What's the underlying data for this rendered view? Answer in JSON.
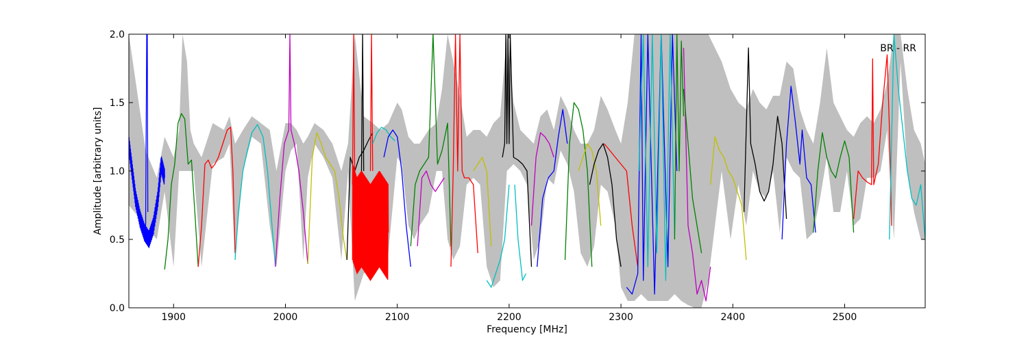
{
  "chart_data": {
    "type": "line",
    "title": "",
    "annotation": "BR - RR",
    "xlabel": "Frequency [MHz]",
    "ylabel": "Amplitude [arbitrary units]",
    "xlim": [
      1860,
      2572
    ],
    "ylim": [
      0.0,
      2.0
    ],
    "x_ticks": [
      1900,
      2000,
      2100,
      2200,
      2300,
      2400,
      2500
    ],
    "x_tick_labels": [
      "1900",
      "2000",
      "2100",
      "2200",
      "2300",
      "2400",
      "2500"
    ],
    "y_ticks": [
      0.0,
      0.5,
      1.0,
      1.5,
      2.0
    ],
    "y_tick_labels": [
      "0.0",
      "0.5",
      "1.0",
      "1.5",
      "2.0"
    ],
    "grid": false,
    "envelope": {
      "color": "#bfbfbf",
      "x": [
        1860,
        1875,
        1885,
        1892,
        1900,
        1905,
        1908,
        1912,
        1915,
        1918,
        1925,
        1935,
        1945,
        1950,
        1955,
        1962,
        1970,
        1978,
        1986,
        1992,
        2000,
        2005,
        2010,
        2016,
        2020,
        2026,
        2034,
        2042,
        2050,
        2056,
        2062,
        2070,
        2078,
        2085,
        2092,
        2100,
        2104,
        2110,
        2115,
        2120,
        2128,
        2135,
        2140,
        2145,
        2150,
        2156,
        2162,
        2168,
        2174,
        2180,
        2186,
        2192,
        2198,
        2204,
        2210,
        2216,
        2222,
        2228,
        2234,
        2240,
        2246,
        2252,
        2258,
        2264,
        2270,
        2276,
        2282,
        2288,
        2295,
        2300,
        2306,
        2312,
        2318,
        2324,
        2330,
        2336,
        2342,
        2348,
        2354,
        2360,
        2366,
        2372,
        2378,
        2384,
        2390,
        2398,
        2405,
        2412,
        2418,
        2424,
        2430,
        2436,
        2442,
        2448,
        2454,
        2460,
        2466,
        2472,
        2478,
        2484,
        2490,
        2496,
        2502,
        2508,
        2514,
        2520,
        2526,
        2532,
        2538,
        2544,
        2550,
        2556,
        2562,
        2568,
        2572
      ],
      "low": [
        0.75,
        0.6,
        0.5,
        0.85,
        0.3,
        1.0,
        1.0,
        1.0,
        1.0,
        1.0,
        0.3,
        1.05,
        1.1,
        1.2,
        0.35,
        1.0,
        1.25,
        1.2,
        0.6,
        0.3,
        1.0,
        1.15,
        1.2,
        0.35,
        0.95,
        1.2,
        1.1,
        0.95,
        0.35,
        1.0,
        0.05,
        0.25,
        0.3,
        0.3,
        0.4,
        1.1,
        1.05,
        0.6,
        0.5,
        0.6,
        0.7,
        1.0,
        1.0,
        0.5,
        0.35,
        0.45,
        0.9,
        0.95,
        0.9,
        0.3,
        0.15,
        0.2,
        1.0,
        1.05,
        1.0,
        0.9,
        0.35,
        0.5,
        0.95,
        0.9,
        1.15,
        1.05,
        0.85,
        0.4,
        0.3,
        0.45,
        0.9,
        0.85,
        0.6,
        0.15,
        0.05,
        0.05,
        0.1,
        0.05,
        0.05,
        0.05,
        0.05,
        0.1,
        0.05,
        0.02,
        0.0,
        0.0,
        0.2,
        0.6,
        1.0,
        0.5,
        0.9,
        0.6,
        1.0,
        0.85,
        0.8,
        1.0,
        0.55,
        1.1,
        1.0,
        0.95,
        0.5,
        0.55,
        0.8,
        1.1,
        0.7,
        0.7,
        1.0,
        0.6,
        0.65,
        0.95,
        0.95,
        1.0,
        1.3,
        0.5,
        1.8,
        1.0,
        0.7,
        0.5,
        0.5
      ],
      "high": [
        2.0,
        1.15,
        0.95,
        1.25,
        1.1,
        1.3,
        2.0,
        1.8,
        1.3,
        1.2,
        1.1,
        1.35,
        1.3,
        1.4,
        1.2,
        1.3,
        1.4,
        1.35,
        1.3,
        1.0,
        1.35,
        1.35,
        1.3,
        1.2,
        1.25,
        1.35,
        1.3,
        1.2,
        1.0,
        1.2,
        2.0,
        1.4,
        1.35,
        1.3,
        1.35,
        1.5,
        1.45,
        1.25,
        1.2,
        1.2,
        1.3,
        1.35,
        1.6,
        2.0,
        1.8,
        1.55,
        1.25,
        1.3,
        1.3,
        1.25,
        1.35,
        1.4,
        2.0,
        1.5,
        1.3,
        1.25,
        1.2,
        1.4,
        1.45,
        1.3,
        1.55,
        1.45,
        1.3,
        1.2,
        1.2,
        1.3,
        1.55,
        1.45,
        1.3,
        1.2,
        1.5,
        2.0,
        2.0,
        2.0,
        2.0,
        2.0,
        2.0,
        2.0,
        2.0,
        2.0,
        2.0,
        2.0,
        2.0,
        1.9,
        1.8,
        1.6,
        1.5,
        1.45,
        1.6,
        1.5,
        1.45,
        1.55,
        1.55,
        1.8,
        1.75,
        1.45,
        1.3,
        1.2,
        1.5,
        1.9,
        1.5,
        1.4,
        1.3,
        1.25,
        1.35,
        1.4,
        1.35,
        1.45,
        1.65,
        2.0,
        2.0,
        1.6,
        1.3,
        1.2,
        1.05
      ]
    },
    "series": [
      {
        "color": "#0000ff",
        "x": [
          1860,
          1863,
          1866,
          1870,
          1874,
          1878,
          1882,
          1886,
          1889,
          1892
        ],
        "y": [
          1.2,
          1.0,
          0.8,
          0.65,
          0.55,
          0.5,
          0.6,
          0.8,
          1.05,
          0.95
        ],
        "noise": 0.06
      },
      {
        "color": "#0000ff",
        "x": [
          1875,
          1876,
          1876.5,
          1877
        ],
        "y": [
          0.6,
          2.0,
          2.0,
          0.7
        ]
      },
      {
        "color": "#008000",
        "x": [
          1892,
          1895,
          1898,
          1901,
          1904,
          1907,
          1910,
          1913,
          1916,
          1919,
          1922
        ],
        "y": [
          0.28,
          0.5,
          0.9,
          1.05,
          1.35,
          1.42,
          1.38,
          1.05,
          1.08,
          0.7,
          0.3
        ]
      },
      {
        "color": "#ff0000",
        "x": [
          1922,
          1925,
          1928,
          1931,
          1934,
          1937,
          1940,
          1944,
          1948,
          1951,
          1953,
          1955
        ],
        "y": [
          0.3,
          0.6,
          1.05,
          1.08,
          1.02,
          1.05,
          1.1,
          1.2,
          1.3,
          1.32,
          1.0,
          0.4
        ]
      },
      {
        "color": "#00bfbf",
        "x": [
          1955,
          1958,
          1962,
          1966,
          1970,
          1975,
          1980,
          1984,
          1988,
          1991
        ],
        "y": [
          0.35,
          0.7,
          1.0,
          1.15,
          1.28,
          1.34,
          1.25,
          1.0,
          0.6,
          0.3
        ]
      },
      {
        "color": "#bf00bf",
        "x": [
          1991,
          1995,
          1999,
          2003,
          2004,
          2005,
          2008,
          2012,
          2016,
          2020
        ],
        "y": [
          0.3,
          0.8,
          1.2,
          1.3,
          2.0,
          1.3,
          1.2,
          1.0,
          0.7,
          0.32
        ]
      },
      {
        "color": "#bfbf00",
        "x": [
          2020,
          2024,
          2028,
          2032,
          2036,
          2040,
          2044,
          2048,
          2052,
          2055
        ],
        "y": [
          0.32,
          1.1,
          1.28,
          1.2,
          1.1,
          1.05,
          1.0,
          0.8,
          0.5,
          0.35
        ]
      },
      {
        "color": "#000000",
        "x": [
          2055,
          2058,
          2062,
          2066,
          2070,
          2074,
          2078
        ],
        "y": [
          0.35,
          1.1,
          1.0,
          1.1,
          1.15,
          1.22,
          1.28
        ]
      },
      {
        "color": "#ff0000",
        "x": [
          2060,
          2064,
          2068,
          2072,
          2076,
          2080,
          2084,
          2088,
          2092
        ],
        "y": [
          0.7,
          0.6,
          0.65,
          0.6,
          0.55,
          0.6,
          0.65,
          0.6,
          0.55
        ],
        "noise": 0.35
      },
      {
        "color": "#ff0000",
        "x": [
          2060,
          2061,
          2062
        ],
        "y": [
          0.9,
          2.0,
          0.9
        ]
      },
      {
        "color": "#000000",
        "x": [
          2068,
          2069,
          2070
        ],
        "y": [
          1.0,
          2.0,
          1.0
        ]
      },
      {
        "color": "#ff0000",
        "x": [
          2076,
          2077,
          2078
        ],
        "y": [
          1.0,
          2.0,
          1.0
        ]
      },
      {
        "color": "#00bfbf",
        "x": [
          2078,
          2082,
          2086,
          2090,
          2094,
          2098
        ],
        "y": [
          1.2,
          1.28,
          1.32,
          1.3,
          1.25,
          1.22
        ]
      },
      {
        "color": "#0000ff",
        "x": [
          2088,
          2092,
          2096,
          2100,
          2104,
          2108,
          2112
        ],
        "y": [
          1.1,
          1.25,
          1.3,
          1.25,
          1.0,
          0.6,
          0.3
        ]
      },
      {
        "color": "#008000",
        "x": [
          2112,
          2116,
          2120,
          2124,
          2128,
          2132,
          2136,
          2140,
          2145,
          2148
        ],
        "y": [
          0.45,
          0.9,
          1.0,
          1.05,
          1.1,
          2.0,
          1.05,
          1.15,
          1.35,
          0.45
        ]
      },
      {
        "color": "#bf00bf",
        "x": [
          2118,
          2122,
          2126,
          2130,
          2134,
          2138,
          2142
        ],
        "y": [
          0.45,
          0.95,
          1.0,
          0.9,
          0.85,
          0.9,
          0.95
        ]
      },
      {
        "color": "#ff0000",
        "x": [
          2148,
          2150,
          2152,
          2154,
          2156,
          2158,
          2160,
          2164,
          2168,
          2172
        ],
        "y": [
          0.3,
          1.0,
          2.0,
          1.0,
          2.0,
          1.0,
          0.95,
          0.95,
          0.9,
          0.4
        ]
      },
      {
        "color": "#bfbf00",
        "x": [
          2168,
          2172,
          2176,
          2180,
          2184
        ],
        "y": [
          1.0,
          1.05,
          1.1,
          1.0,
          0.45
        ]
      },
      {
        "color": "#00bfbf",
        "x": [
          2180,
          2184,
          2188,
          2192,
          2196,
          2200
        ],
        "y": [
          0.2,
          0.15,
          0.25,
          0.35,
          0.5,
          0.9
        ]
      },
      {
        "color": "#000000",
        "x": [
          2194,
          2196,
          2197,
          2198,
          2199,
          2200,
          2201,
          2204,
          2208,
          2212,
          2216,
          2220
        ],
        "y": [
          1.1,
          1.2,
          2.0,
          1.2,
          2.0,
          1.2,
          2.0,
          1.1,
          1.08,
          1.05,
          1.0,
          0.3
        ]
      },
      {
        "color": "#00bfbf",
        "x": [
          2205,
          2208,
          2212,
          2215
        ],
        "y": [
          0.9,
          0.5,
          0.2,
          0.25
        ]
      },
      {
        "color": "#bf00bf",
        "x": [
          2220,
          2224,
          2228,
          2232,
          2236,
          2240
        ],
        "y": [
          0.6,
          1.1,
          1.28,
          1.25,
          1.2,
          1.1
        ]
      },
      {
        "color": "#0000ff",
        "x": [
          2225,
          2230,
          2235,
          2240,
          2244,
          2248,
          2252
        ],
        "y": [
          0.3,
          0.8,
          0.95,
          1.0,
          1.25,
          1.45,
          1.2
        ]
      },
      {
        "color": "#008000",
        "x": [
          2250,
          2254,
          2258,
          2262,
          2266,
          2270,
          2274
        ],
        "y": [
          0.35,
          1.2,
          1.5,
          1.45,
          1.3,
          1.0,
          0.3
        ]
      },
      {
        "color": "#bfbf00",
        "x": [
          2262,
          2266,
          2270,
          2274,
          2278,
          2282
        ],
        "y": [
          1.0,
          1.1,
          1.2,
          1.15,
          1.0,
          0.6
        ]
      },
      {
        "color": "#000000",
        "x": [
          2272,
          2276,
          2280,
          2284,
          2288,
          2292,
          2296,
          2300
        ],
        "y": [
          0.9,
          1.05,
          1.15,
          1.2,
          1.1,
          0.9,
          0.5,
          0.3
        ]
      },
      {
        "color": "#ff0000",
        "x": [
          2285,
          2290,
          2295,
          2300,
          2305,
          2310,
          2315
        ],
        "y": [
          1.2,
          1.15,
          1.1,
          1.05,
          1.0,
          0.6,
          0.3
        ]
      },
      {
        "color": "#0000ff",
        "x": [
          2305,
          2310,
          2315,
          2318,
          2320,
          2324,
          2330,
          2336,
          2342,
          2346,
          2350
        ],
        "y": [
          0.15,
          0.1,
          0.25,
          2.0,
          0.2,
          2.0,
          0.1,
          2.0,
          0.3,
          2.0,
          1.0
        ]
      },
      {
        "color": "#00bfbf",
        "x": [
          2316,
          2320,
          2324,
          2328,
          2332,
          2336,
          2340,
          2344,
          2348
        ],
        "y": [
          1.0,
          2.0,
          0.3,
          2.0,
          0.4,
          2.0,
          0.2,
          2.0,
          0.5
        ]
      },
      {
        "color": "#008000",
        "x": [
          2348,
          2350,
          2352,
          2354,
          2356
        ],
        "y": [
          0.5,
          2.0,
          1.0,
          1.95,
          1.4
        ]
      },
      {
        "color": "#bf00bf",
        "x": [
          2356,
          2360,
          2364,
          2368,
          2372,
          2376,
          2380
        ],
        "y": [
          1.9,
          0.6,
          0.4,
          0.1,
          0.2,
          0.05,
          0.3
        ]
      },
      {
        "color": "#008000",
        "x": [
          2356,
          2360,
          2364,
          2368,
          2372
        ],
        "y": [
          1.6,
          1.2,
          0.8,
          0.6,
          0.4
        ]
      },
      {
        "color": "#bfbf00",
        "x": [
          2380,
          2384,
          2388,
          2392,
          2396,
          2400,
          2404,
          2408,
          2412
        ],
        "y": [
          0.9,
          1.25,
          1.15,
          1.1,
          1.0,
          0.95,
          0.85,
          0.75,
          0.35
        ]
      },
      {
        "color": "#000000",
        "x": [
          2410,
          2414,
          2416,
          2420,
          2424,
          2428,
          2432,
          2436,
          2440,
          2444,
          2448
        ],
        "y": [
          0.7,
          1.9,
          1.2,
          1.05,
          0.85,
          0.78,
          0.85,
          1.05,
          1.4,
          1.2,
          0.65
        ]
      },
      {
        "color": "#0000ff",
        "x": [
          2444,
          2448,
          2452,
          2456,
          2460,
          2462,
          2466,
          2470,
          2474
        ],
        "y": [
          0.5,
          1.2,
          1.62,
          1.35,
          1.05,
          1.3,
          0.95,
          0.9,
          0.55
        ]
      },
      {
        "color": "#008000",
        "x": [
          2472,
          2476,
          2480,
          2484,
          2488,
          2492,
          2496,
          2500,
          2504,
          2508
        ],
        "y": [
          0.55,
          1.0,
          1.28,
          1.1,
          1.0,
          0.95,
          1.1,
          1.22,
          1.1,
          0.55
        ]
      },
      {
        "color": "#ff0000",
        "x": [
          2508,
          2512,
          2516,
          2520,
          2524,
          2525,
          2526,
          2530,
          2534,
          2538,
          2540,
          2542
        ],
        "y": [
          0.65,
          1.0,
          0.95,
          0.92,
          0.9,
          1.82,
          0.9,
          1.05,
          1.5,
          1.85,
          1.3,
          0.6
        ]
      },
      {
        "color": "#00bfbf",
        "x": [
          2540,
          2544,
          2548,
          2552,
          2556,
          2560,
          2564,
          2568,
          2572
        ],
        "y": [
          0.5,
          2.0,
          1.6,
          1.3,
          1.0,
          0.8,
          0.75,
          0.9,
          0.5
        ]
      }
    ]
  }
}
